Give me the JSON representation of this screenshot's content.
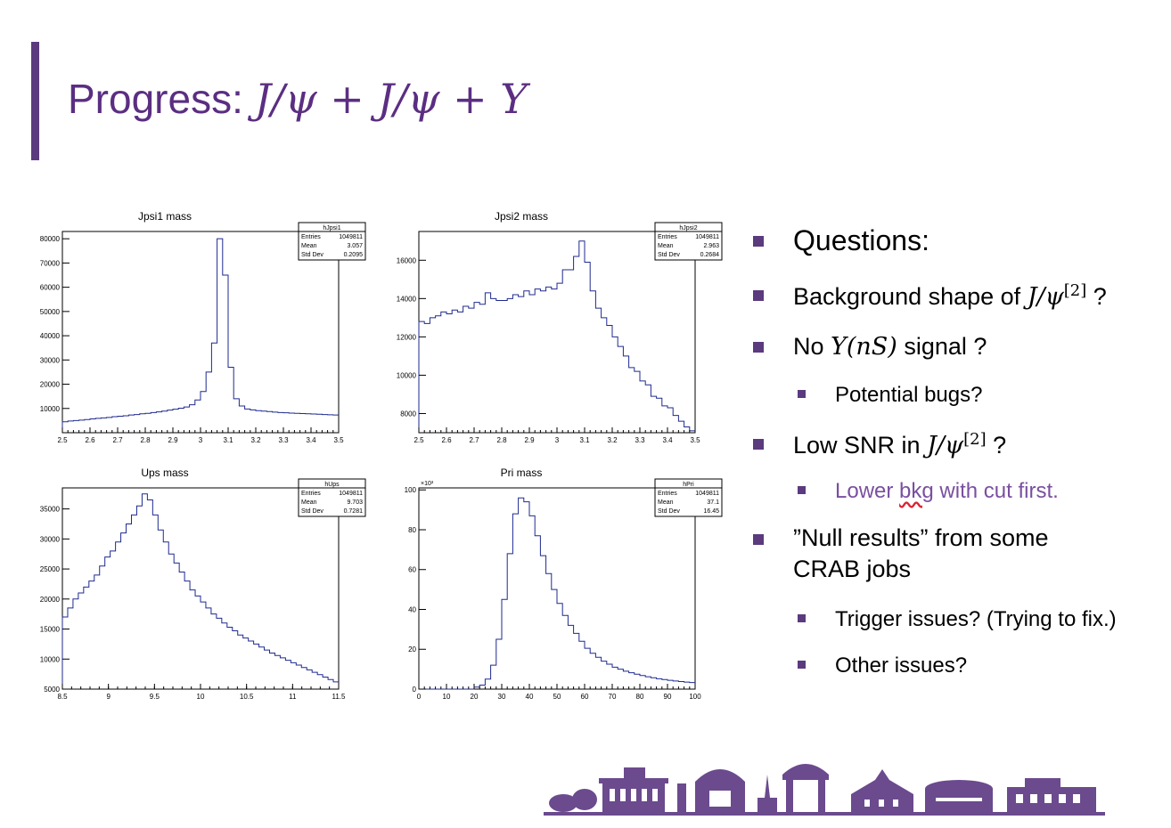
{
  "slide": {
    "title_prefix": "Progress:",
    "title_math": "J/ψ + J/ψ + Υ"
  },
  "bullets": {
    "b1": "Questions:",
    "b2_text": "Background shape of ",
    "b2_math": "J/ψ",
    "b2_sup": "[2]",
    "b2_tail": " ?",
    "b3_text": "No ",
    "b3_math": "Υ(nS)",
    "b3_tail": " signal ?",
    "b3_sub": "Potential bugs?",
    "b4_text": "Low SNR in ",
    "b4_math": "J/ψ",
    "b4_sup": "[2]",
    "b4_tail": " ?",
    "b4_sub_pre": "Lower ",
    "b4_sub_squiggle": "bkg",
    "b4_sub_post": " with cut first.",
    "b5_line1": "”Null results” from some",
    "b5_line2": "CRAB jobs",
    "b5_sub1": "Trigger issues? (Trying to fix.)",
    "b5_sub2": "Other issues?"
  },
  "colors": {
    "accent": "#5b3a7e",
    "hist": "#1f2a8f",
    "purple_text": "#7a4fa0"
  },
  "chart_data": [
    {
      "type": "histogram",
      "title": "Jpsi1 mass",
      "stats": {
        "name": "hJpsi1",
        "rows": [
          [
            "Entries",
            "1049811"
          ],
          [
            "Mean",
            "3.057"
          ],
          [
            "Std Dev",
            "0.2095"
          ]
        ]
      },
      "xlim": [
        2.5,
        3.5
      ],
      "ylim": [
        0,
        83000
      ],
      "xticks": [
        2.5,
        2.6,
        2.7,
        2.8,
        2.9,
        3,
        3.1,
        3.2,
        3.3,
        3.4,
        3.5
      ],
      "yticks": [
        10000,
        20000,
        30000,
        40000,
        50000,
        60000,
        70000,
        80000
      ],
      "values": [
        4500,
        4800,
        5000,
        5200,
        5400,
        5700,
        5900,
        6100,
        6300,
        6600,
        6800,
        7000,
        7300,
        7500,
        7800,
        8000,
        8300,
        8600,
        8900,
        9300,
        9700,
        10100,
        10600,
        11500,
        13500,
        17000,
        25000,
        37000,
        80000,
        65000,
        27000,
        14000,
        11000,
        9800,
        9400,
        9100,
        8900,
        8700,
        8500,
        8300,
        8200,
        8100,
        8000,
        7900,
        7800,
        7700,
        7600,
        7500,
        7400,
        7300
      ]
    },
    {
      "type": "histogram",
      "title": "Jpsi2 mass",
      "stats": {
        "name": "hJpsi2",
        "rows": [
          [
            "Entries",
            "1049811"
          ],
          [
            "Mean",
            "2.963"
          ],
          [
            "Std Dev",
            "0.2684"
          ]
        ]
      },
      "xlim": [
        2.5,
        3.5
      ],
      "ylim": [
        7000,
        17500
      ],
      "xticks": [
        2.5,
        2.6,
        2.7,
        2.8,
        2.9,
        3,
        3.1,
        3.2,
        3.3,
        3.4,
        3.5
      ],
      "yticks": [
        8000,
        10000,
        12000,
        14000,
        16000
      ],
      "values": [
        12800,
        12700,
        13000,
        13100,
        13300,
        13200,
        13400,
        13300,
        13600,
        13500,
        13800,
        13700,
        14300,
        14000,
        13900,
        13900,
        14000,
        14200,
        14100,
        14400,
        14200,
        14500,
        14400,
        14600,
        14500,
        14800,
        15500,
        15500,
        16200,
        17000,
        15900,
        14400,
        13500,
        13000,
        12600,
        12000,
        11500,
        11000,
        10400,
        10200,
        9700,
        9500,
        8900,
        8800,
        8400,
        8300,
        7900,
        7600,
        7300,
        7100
      ]
    },
    {
      "type": "histogram",
      "title": "Ups mass",
      "stats": {
        "name": "hUps",
        "rows": [
          [
            "Entries",
            "1049811"
          ],
          [
            "Mean",
            "9.703"
          ],
          [
            "Std Dev",
            "0.7281"
          ]
        ]
      },
      "xlim": [
        8.5,
        11.5
      ],
      "ylim": [
        5000,
        38500
      ],
      "xticks": [
        8.5,
        9,
        9.5,
        10,
        10.5,
        11,
        11.5
      ],
      "yticks": [
        5000,
        10000,
        15000,
        20000,
        25000,
        30000,
        35000
      ],
      "values": [
        17000,
        18500,
        20000,
        21000,
        22000,
        23000,
        24000,
        25500,
        27000,
        28000,
        29500,
        31000,
        32500,
        34000,
        35500,
        37500,
        36500,
        34000,
        31500,
        29500,
        27500,
        26000,
        24500,
        23000,
        21500,
        20500,
        19500,
        18500,
        17500,
        16800,
        16000,
        15300,
        14700,
        14000,
        13500,
        13000,
        12500,
        12000,
        11500,
        11000,
        10600,
        10200,
        9800,
        9400,
        9000,
        8600,
        8200,
        7800,
        7400,
        7000,
        6600,
        6200
      ]
    },
    {
      "type": "histogram",
      "title": "Pri mass",
      "stats": {
        "name": "hPri",
        "rows": [
          [
            "Entries",
            "1049811"
          ],
          [
            "Mean",
            "37.1"
          ],
          [
            "Std Dev",
            "16.45"
          ]
        ]
      },
      "exponent_label": "×10³",
      "xlim": [
        0,
        100
      ],
      "ylim": [
        0,
        101
      ],
      "xticks": [
        0,
        10,
        20,
        30,
        40,
        50,
        60,
        70,
        80,
        90,
        100
      ],
      "yticks": [
        0,
        20,
        40,
        60,
        80,
        100
      ],
      "values": [
        0,
        0,
        0,
        0,
        0,
        0,
        0,
        0,
        0,
        0,
        1,
        2,
        5,
        12,
        25,
        45,
        68,
        88,
        96,
        94,
        87,
        77,
        67,
        58,
        50,
        43,
        37,
        32,
        28,
        24,
        20.5,
        18,
        16,
        14,
        12.5,
        11,
        10,
        9,
        8.2,
        7.5,
        6.8,
        6.2,
        5.7,
        5.2,
        4.8,
        4.4,
        4.1,
        3.8,
        3.5,
        3.3
      ]
    }
  ]
}
